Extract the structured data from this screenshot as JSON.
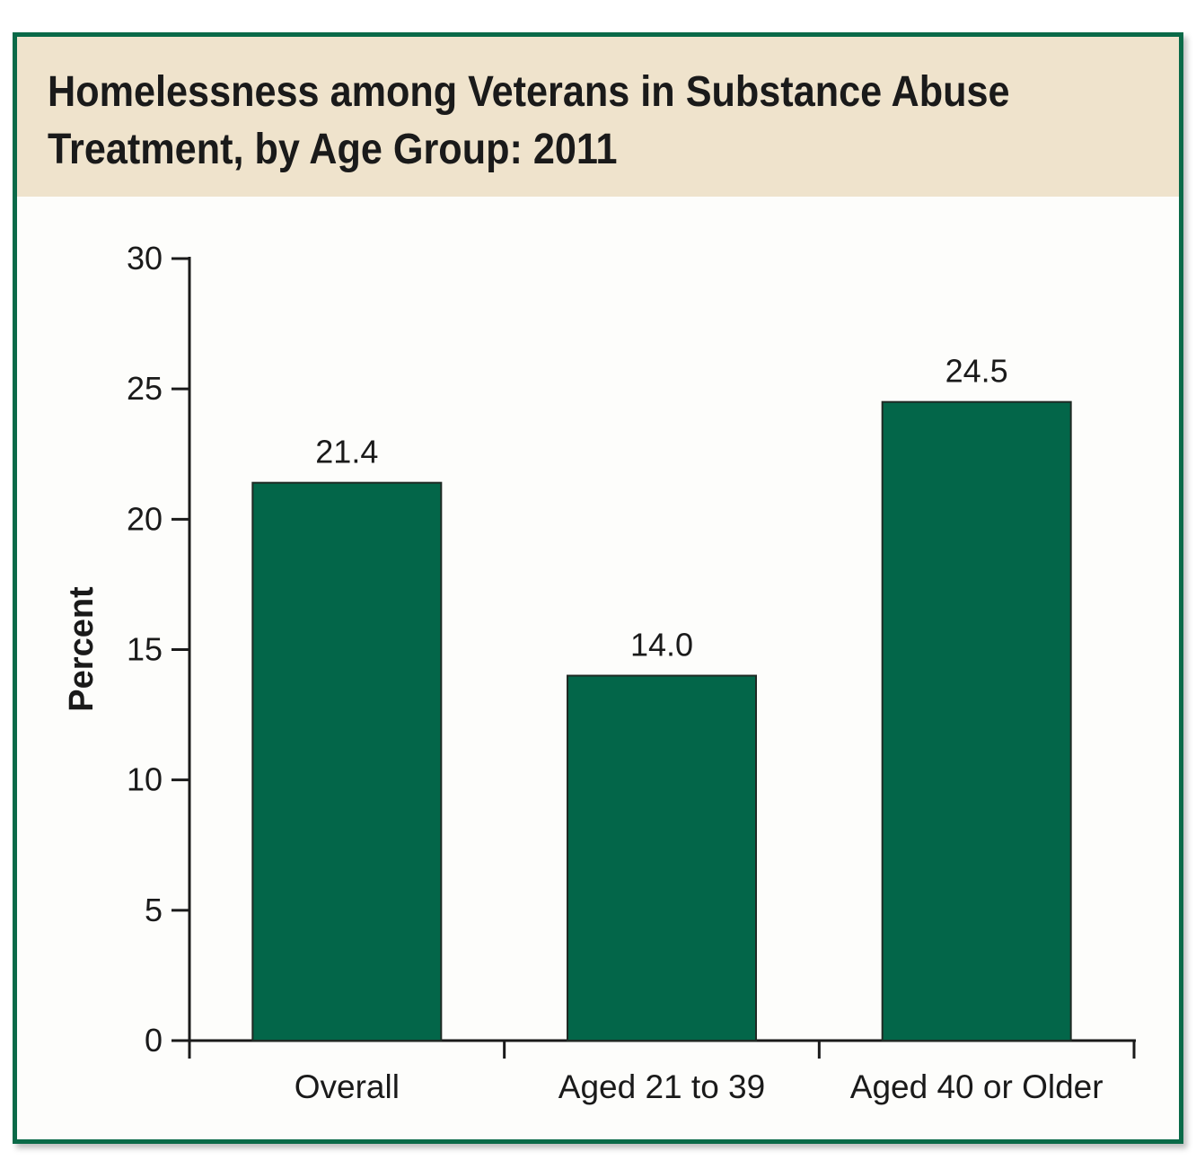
{
  "chart_data": {
    "type": "bar",
    "title": "Homelessness among Veterans in Substance Abuse Treatment, by Age Group: 2011",
    "xlabel": "",
    "ylabel": "Percent",
    "categories": [
      "Overall",
      "Aged 21 to 39",
      "Aged 40 or Older"
    ],
    "values": [
      21.4,
      14.0,
      24.5
    ],
    "value_labels": [
      "21.4",
      "14.0",
      "24.5"
    ],
    "ylim": [
      0,
      30
    ],
    "yticks": [
      0,
      5,
      10,
      15,
      20,
      25,
      30
    ],
    "grid": false,
    "bar_color": "#036649",
    "frame_color": "#0a6a48",
    "header_color": "#efe3cc"
  }
}
